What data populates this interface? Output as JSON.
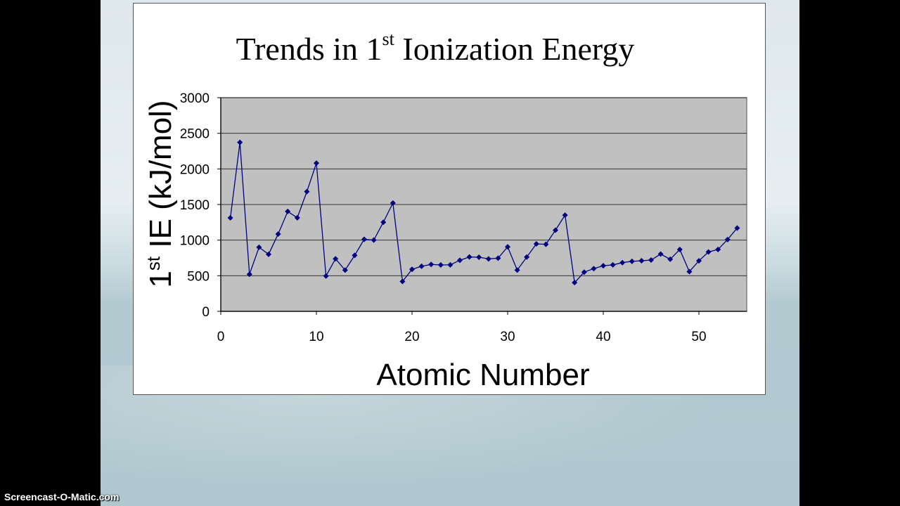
{
  "slide": {
    "title_main": "Trends in 1",
    "title_sup": "st",
    "title_rest": " Ionization Energy"
  },
  "watermark": "Screencast-O-Matic.com",
  "chart_data": {
    "type": "line",
    "title": "Trends in 1st Ionization Energy",
    "xlabel": "Atomic Number",
    "ylabel": "1st IE (kJ/mol)",
    "xlim": [
      0,
      55
    ],
    "ylim": [
      0,
      3000
    ],
    "x_ticks": [
      0,
      10,
      20,
      30,
      40,
      50
    ],
    "y_ticks": [
      0,
      500,
      1000,
      1500,
      2000,
      2500,
      3000
    ],
    "grid": "horizontal",
    "legend": "none",
    "plot_bg": "#c0c0c0",
    "series_color": "#000080",
    "marker": "diamond",
    "series": [
      {
        "name": "1st IE",
        "x": [
          1,
          2,
          3,
          4,
          5,
          6,
          7,
          8,
          9,
          10,
          11,
          12,
          13,
          14,
          15,
          16,
          17,
          18,
          19,
          20,
          21,
          22,
          23,
          24,
          25,
          26,
          27,
          28,
          29,
          30,
          31,
          32,
          33,
          34,
          35,
          36,
          37,
          38,
          39,
          40,
          41,
          42,
          43,
          44,
          45,
          46,
          47,
          48,
          49,
          50,
          51,
          52,
          53,
          54
        ],
        "values": [
          1312,
          2372,
          520,
          899,
          801,
          1086,
          1402,
          1314,
          1681,
          2081,
          496,
          738,
          578,
          786,
          1012,
          1000,
          1251,
          1521,
          419,
          590,
          633,
          659,
          651,
          653,
          717,
          763,
          760,
          737,
          746,
          906,
          579,
          762,
          947,
          941,
          1140,
          1351,
          403,
          550,
          600,
          640,
          652,
          684,
          702,
          710,
          720,
          804,
          731,
          868,
          558,
          709,
          834,
          869,
          1008,
          1170
        ]
      }
    ]
  }
}
